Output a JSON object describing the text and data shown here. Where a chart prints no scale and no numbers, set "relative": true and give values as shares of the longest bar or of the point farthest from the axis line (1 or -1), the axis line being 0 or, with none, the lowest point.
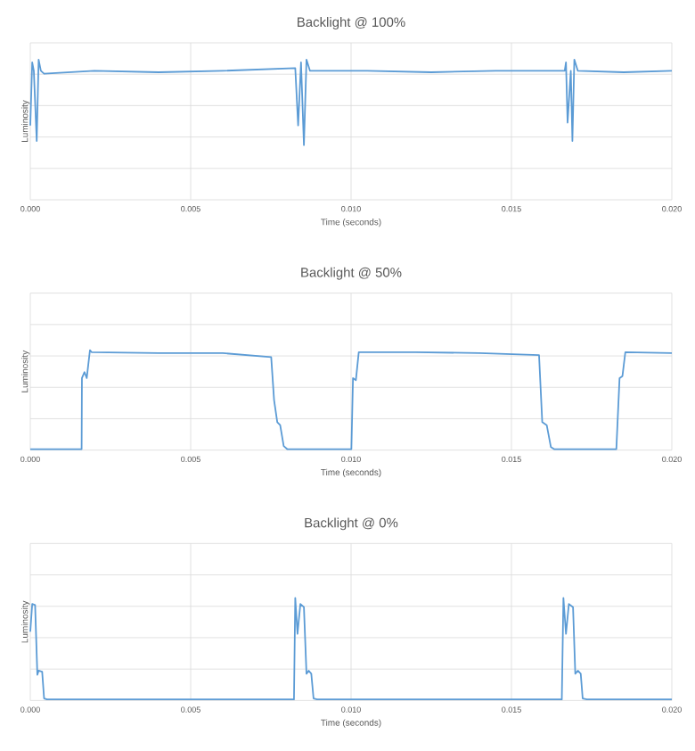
{
  "chart_data": [
    {
      "type": "line",
      "title": "Backlight @ 100%",
      "xlabel": "Time (seconds)",
      "ylabel": "Luminosity",
      "relative": true,
      "grid": true,
      "marker": "none",
      "line_style": "solid",
      "xlim": [
        0,
        0.02
      ],
      "xticks": [
        {
          "value": 0,
          "label": "0.000"
        },
        {
          "value": 0.005,
          "label": "0.005"
        },
        {
          "value": 0.01,
          "label": "0.010"
        },
        {
          "value": 0.015,
          "label": "0.015"
        },
        {
          "value": 0.02,
          "label": "0.020"
        }
      ],
      "series": [
        {
          "color": "#5b9bd5",
          "x": [
            0,
            6e-05,
            0.00011,
            0.0002,
            0.00026,
            0.00033,
            0.00043,
            0.002,
            0.004,
            0.006,
            0.00826,
            0.00835,
            0.00844,
            0.00853,
            0.00861,
            0.00872,
            0.0105,
            0.0125,
            0.0145,
            0.01666,
            0.0167,
            0.01675,
            0.01685,
            0.0169,
            0.01696,
            0.01707,
            0.0185,
            0.02
          ],
          "values": [
            0.53,
            0.98,
            0.92,
            0.42,
            1.0,
            0.92,
            0.9,
            0.92,
            0.91,
            0.92,
            0.94,
            0.53,
            0.98,
            0.39,
            1.0,
            0.92,
            0.92,
            0.91,
            0.92,
            0.92,
            0.98,
            0.55,
            0.92,
            0.42,
            1.0,
            0.92,
            0.91,
            0.92
          ]
        }
      ]
    },
    {
      "type": "line",
      "title": "Backlight @ 50%",
      "xlabel": "Time (seconds)",
      "ylabel": "Luminosity",
      "relative": true,
      "grid": true,
      "marker": "none",
      "line_style": "solid",
      "xlim": [
        0,
        0.02
      ],
      "xticks": [
        {
          "value": 0,
          "label": "0.000"
        },
        {
          "value": 0.005,
          "label": "0.005"
        },
        {
          "value": 0.01,
          "label": "0.010"
        },
        {
          "value": 0.015,
          "label": "0.015"
        },
        {
          "value": 0.02,
          "label": "0.020"
        }
      ],
      "series": [
        {
          "color": "#5b9bd5",
          "x": [
            0,
            0.0016,
            0.00161,
            0.00169,
            0.00176,
            0.00186,
            0.00191,
            0.004,
            0.006,
            0.00751,
            0.0076,
            0.0077,
            0.00779,
            0.0079,
            0.00801,
            0.009,
            0.01001,
            0.01006,
            0.01015,
            0.01024,
            0.012,
            0.014,
            0.01586,
            0.01596,
            0.0161,
            0.01623,
            0.01633,
            0.01827,
            0.01837,
            0.01846,
            0.01855,
            0.02
          ],
          "values": [
            0.01,
            0.01,
            0.72,
            0.78,
            0.72,
            1.0,
            0.98,
            0.97,
            0.97,
            0.93,
            0.5,
            0.28,
            0.25,
            0.04,
            0.01,
            0.01,
            0.01,
            0.72,
            0.7,
            0.98,
            0.98,
            0.97,
            0.95,
            0.28,
            0.25,
            0.03,
            0.01,
            0.01,
            0.72,
            0.74,
            0.98,
            0.97
          ]
        }
      ]
    },
    {
      "type": "line",
      "title": "Backlight @ 0%",
      "xlabel": "Time (seconds)",
      "ylabel": "Luminosity",
      "relative": true,
      "grid": true,
      "marker": "none",
      "line_style": "solid",
      "xlim": [
        0,
        0.02
      ],
      "xticks": [
        {
          "value": 0,
          "label": "0.000"
        },
        {
          "value": 0.005,
          "label": "0.005"
        },
        {
          "value": 0.01,
          "label": "0.010"
        },
        {
          "value": 0.015,
          "label": "0.015"
        },
        {
          "value": 0.02,
          "label": "0.020"
        }
      ],
      "series": [
        {
          "color": "#5b9bd5",
          "x": [
            0,
            6e-05,
            0.00015,
            0.00022,
            0.00026,
            0.00037,
            0.00043,
            0.00052,
            0.004,
            0.00822,
            0.00826,
            0.00833,
            0.00842,
            0.00853,
            0.00861,
            0.00868,
            0.00876,
            0.00883,
            0.00894,
            0.0125,
            0.01657,
            0.01662,
            0.0167,
            0.01679,
            0.01692,
            0.01699,
            0.01707,
            0.01716,
            0.01722,
            0.01735,
            0.02
          ],
          "values": [
            0.67,
            0.94,
            0.93,
            0.25,
            0.29,
            0.28,
            0.02,
            0.01,
            0.01,
            0.01,
            1.0,
            0.65,
            0.94,
            0.91,
            0.26,
            0.29,
            0.26,
            0.02,
            0.01,
            0.01,
            0.01,
            1.0,
            0.65,
            0.94,
            0.91,
            0.26,
            0.29,
            0.26,
            0.02,
            0.01,
            0.01
          ]
        }
      ]
    }
  ]
}
